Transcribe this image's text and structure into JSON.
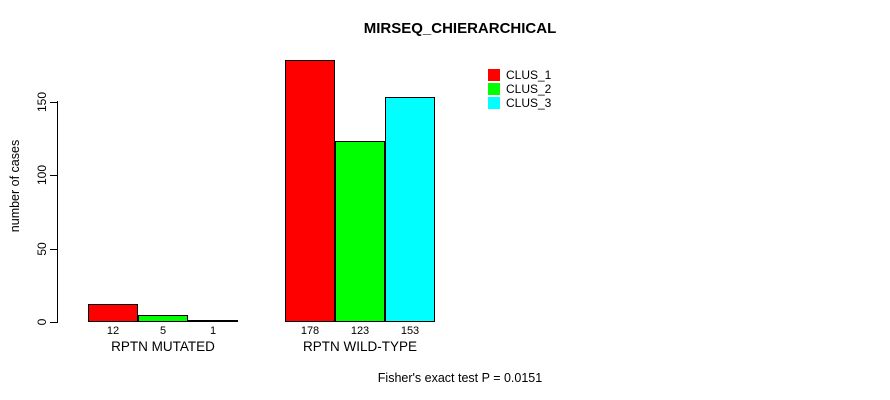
{
  "chart_data": {
    "type": "bar",
    "title": "MIRSEQ_CHIERARCHICAL",
    "ylabel": "number of cases",
    "xlabel": "",
    "categories": [
      "RPTN MUTATED",
      "RPTN WILD-TYPE"
    ],
    "series": [
      {
        "name": "CLUS_1",
        "color": "#ff0000",
        "values": [
          12,
          178
        ]
      },
      {
        "name": "CLUS_2",
        "color": "#00ff00",
        "values": [
          5,
          123
        ]
      },
      {
        "name": "CLUS_3",
        "color": "#00ffff",
        "values": [
          1,
          153
        ]
      }
    ],
    "bar_value_labels": [
      [
        "12",
        "5",
        "1"
      ],
      [
        "178",
        "123",
        "153"
      ]
    ],
    "yticks": [
      0,
      50,
      100,
      150
    ],
    "ylim": [
      0,
      185
    ],
    "grid": false,
    "legend_position": "top-right",
    "legend_entries": [
      "CLUS_1",
      "CLUS_2",
      "CLUS_3"
    ],
    "footer": "Fisher's exact test P = 0.0151"
  }
}
